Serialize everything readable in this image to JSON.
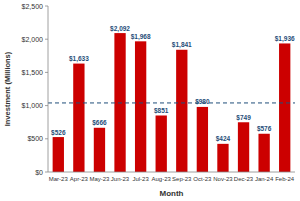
{
  "chart_data": {
    "type": "bar",
    "x_label": "Month",
    "y_label": "Investment (Millions)",
    "categories": [
      "Mar-23",
      "Apr-23",
      "May-23",
      "Jun-23",
      "Jul-23",
      "Aug-23",
      "Sep-23",
      "Oct-23",
      "Nov-23",
      "Dec-23",
      "Jan-24",
      "Feb-24"
    ],
    "values": [
      526,
      1633,
      666,
      2092,
      1968,
      851,
      1841,
      980,
      424,
      749,
      576,
      1936
    ],
    "value_labels": [
      "$526",
      "$1,633",
      "$666",
      "$2,092",
      "$1,968",
      "$851",
      "$1,841",
      "$980",
      "$424",
      "$749",
      "$576",
      "$1,936"
    ],
    "color": "#cc0000",
    "reference_line": 1040,
    "ylim": [
      0,
      2500
    ],
    "yticks": [
      {
        "value": 0,
        "label": "$0"
      },
      {
        "value": 500,
        "label": "$500"
      },
      {
        "value": 1000,
        "label": "$1,000"
      },
      {
        "value": 1500,
        "label": "$1,500"
      },
      {
        "value": 2000,
        "label": "$2,000"
      },
      {
        "value": 2500,
        "label": "$2,500"
      }
    ],
    "grid": false,
    "data_labels": true
  }
}
